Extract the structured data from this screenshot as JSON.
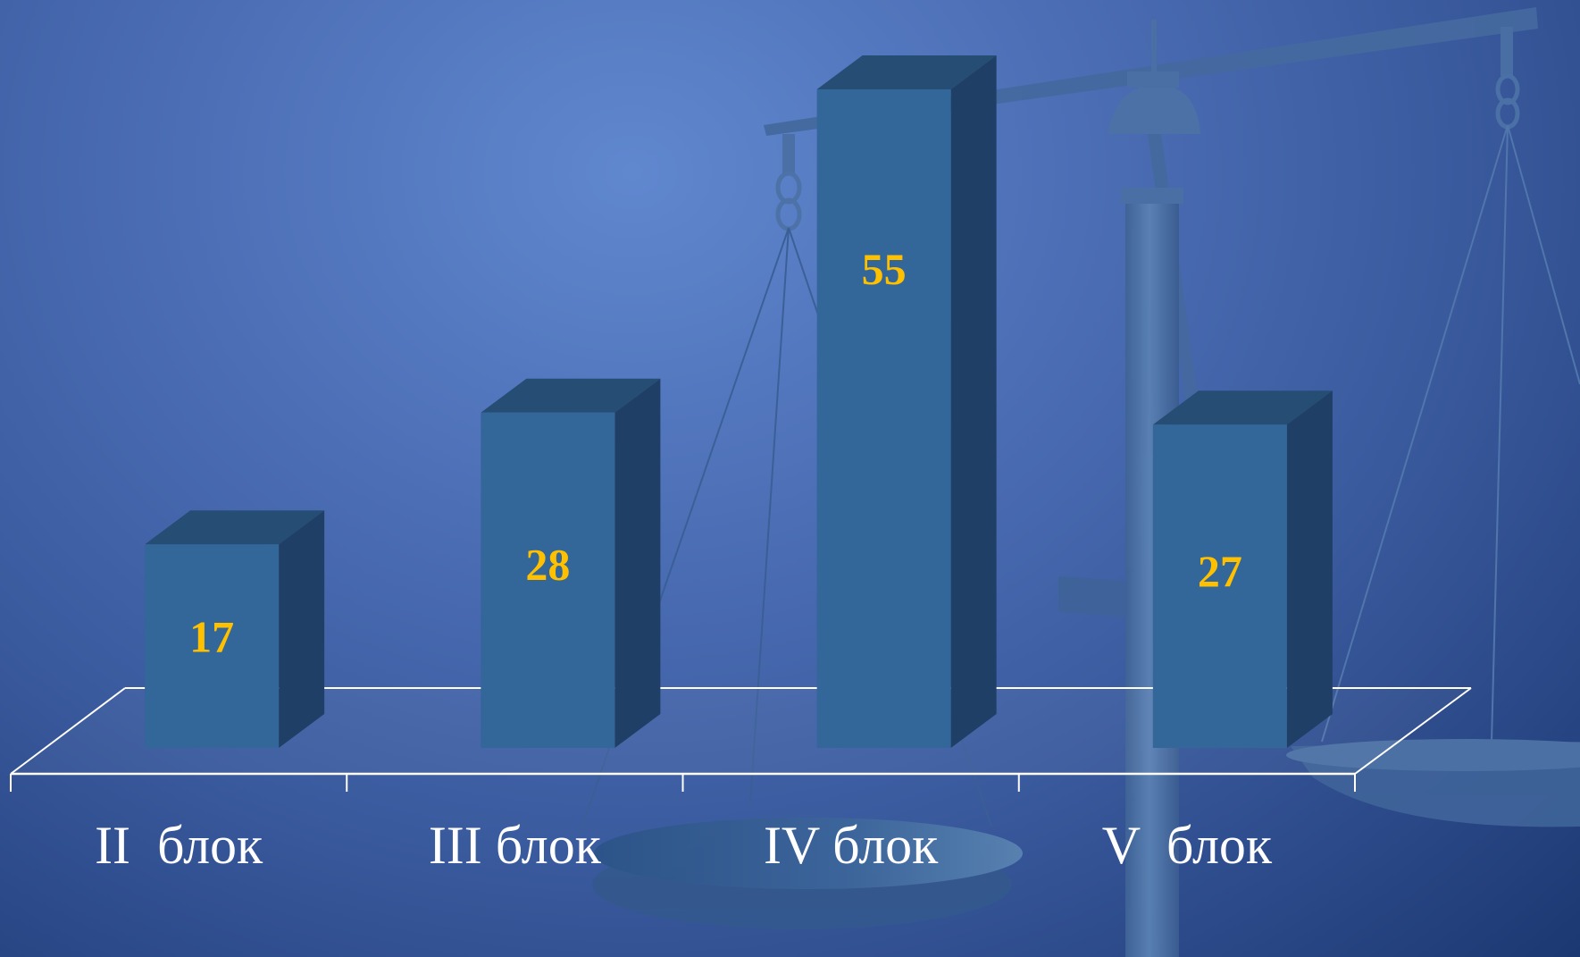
{
  "chart_data": {
    "type": "bar",
    "title": "",
    "xlabel": "",
    "ylabel": "",
    "categories": [
      "II  блок",
      "III блок",
      "IV блок",
      "V  блок"
    ],
    "values": [
      17,
      28,
      55,
      27
    ],
    "ylim": [
      0,
      55
    ],
    "grid": false,
    "legend": "none",
    "three_d": true
  },
  "colors": {
    "background": "#4d6fb6",
    "bar_front": "#336699",
    "bar_top": "#264d73",
    "bar_side": "#1f3f66",
    "value_label": "#ffc000",
    "category_label": "#ffffff",
    "floor_line": "#ffffff"
  },
  "decoration": {
    "background_image": "balance-scale-illustration"
  }
}
